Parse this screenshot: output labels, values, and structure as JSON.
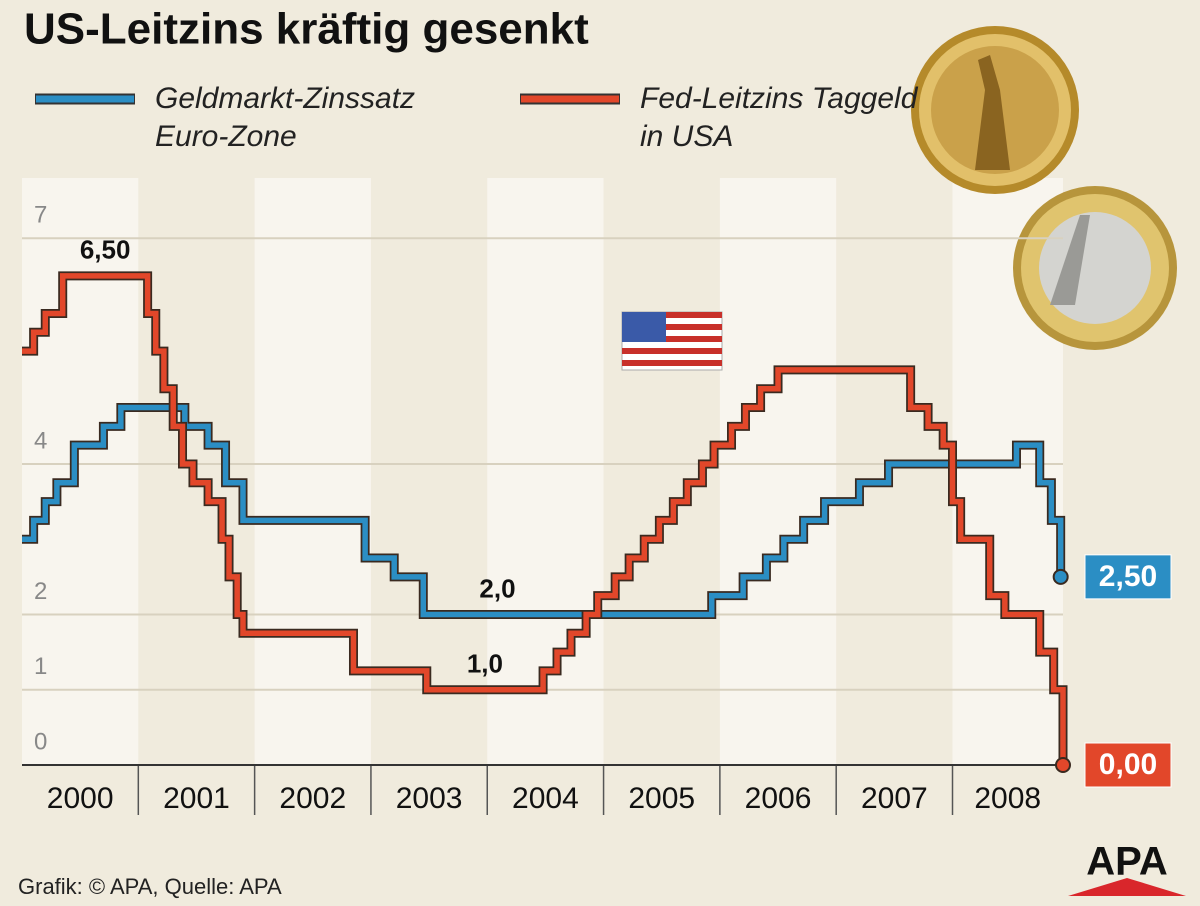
{
  "chart_data": {
    "type": "step-line",
    "title": "US-Leitzins kräftig gesenkt",
    "xlim": [
      2000,
      2008.95
    ],
    "xticks": [
      2000,
      2001,
      2002,
      2003,
      2004,
      2005,
      2006,
      2007,
      2008
    ],
    "ylim": [
      0,
      7.8
    ],
    "yticks": [
      0,
      1,
      2,
      4,
      7
    ],
    "grid": true,
    "series": [
      {
        "name": "Geldmarkt-Zinssatz Euro-Zone",
        "color": "#2b8ec4",
        "x": [
          2000.0,
          2000.1,
          2000.2,
          2000.3,
          2000.45,
          2000.7,
          2000.85,
          2001.4,
          2001.6,
          2001.75,
          2001.9,
          2002.95,
          2003.2,
          2003.45,
          2005.93,
          2006.2,
          2006.4,
          2006.55,
          2006.72,
          2006.9,
          2007.2,
          2007.45,
          2008.55,
          2008.75,
          2008.85,
          2008.93
        ],
        "values": [
          3.0,
          3.25,
          3.5,
          3.75,
          4.25,
          4.5,
          4.75,
          4.5,
          4.25,
          3.75,
          3.25,
          2.75,
          2.5,
          2.0,
          2.25,
          2.5,
          2.75,
          3.0,
          3.25,
          3.5,
          3.75,
          4.0,
          4.25,
          3.75,
          3.25,
          2.5
        ],
        "value_labels": [
          null,
          null,
          null,
          null,
          null,
          null,
          null,
          null,
          null,
          null,
          null,
          null,
          null,
          "2,0",
          null,
          null,
          null,
          null,
          null,
          null,
          null,
          null,
          null,
          null,
          null,
          "2,50"
        ]
      },
      {
        "name": "Fed-Leitzins Taggeld in USA",
        "color": "#e2472a",
        "x": [
          2000.0,
          2000.1,
          2000.2,
          2000.35,
          2001.08,
          2001.15,
          2001.22,
          2001.3,
          2001.38,
          2001.47,
          2001.6,
          2001.72,
          2001.78,
          2001.85,
          2001.9,
          2002.85,
          2003.48,
          2004.48,
          2004.6,
          2004.72,
          2004.85,
          2004.95,
          2005.1,
          2005.22,
          2005.35,
          2005.48,
          2005.6,
          2005.72,
          2005.85,
          2005.95,
          2006.1,
          2006.22,
          2006.35,
          2006.5,
          2007.64,
          2007.79,
          2007.92,
          2008.0,
          2008.07,
          2008.32,
          2008.45,
          2008.75,
          2008.87,
          2008.95
        ],
        "values": [
          5.5,
          5.75,
          6.0,
          6.5,
          6.0,
          5.5,
          5.0,
          4.5,
          4.0,
          3.75,
          3.5,
          3.0,
          2.5,
          2.0,
          1.75,
          1.25,
          1.0,
          1.25,
          1.5,
          1.75,
          2.0,
          2.25,
          2.5,
          2.75,
          3.0,
          3.25,
          3.5,
          3.75,
          4.0,
          4.25,
          4.5,
          4.75,
          5.0,
          5.25,
          4.75,
          4.5,
          4.25,
          3.5,
          3.0,
          2.25,
          2.0,
          1.5,
          1.0,
          0.0
        ],
        "value_labels": [
          null,
          null,
          null,
          "6,50",
          null,
          null,
          null,
          null,
          null,
          null,
          null,
          null,
          null,
          null,
          null,
          null,
          "1,0",
          null,
          null,
          null,
          null,
          null,
          null,
          null,
          null,
          null,
          null,
          null,
          null,
          null,
          null,
          null,
          null,
          null,
          null,
          null,
          null,
          null,
          null,
          null,
          null,
          null,
          null,
          "0,00"
        ]
      }
    ],
    "source": "Grafik: © APA, Quelle: APA",
    "logo": "APA"
  }
}
